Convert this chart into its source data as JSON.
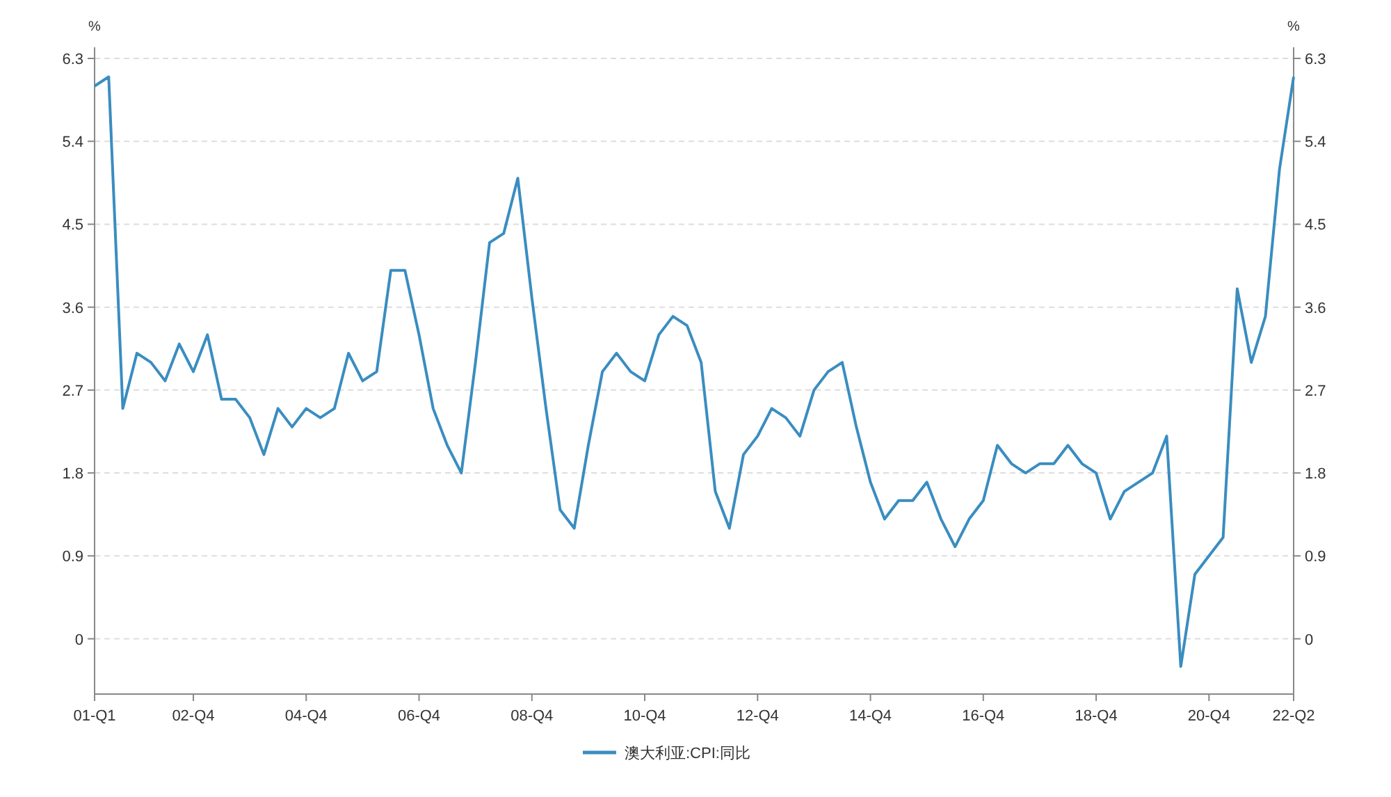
{
  "chart_data": {
    "type": "line",
    "ylabel": "%",
    "y2label": "%",
    "categories": [
      "01-Q1",
      null,
      null,
      null,
      null,
      null,
      null,
      "02-Q4",
      null,
      null,
      null,
      null,
      null,
      null,
      null,
      "04-Q4",
      null,
      null,
      null,
      null,
      null,
      null,
      null,
      "06-Q4",
      null,
      null,
      null,
      null,
      null,
      null,
      null,
      "08-Q4",
      null,
      null,
      null,
      null,
      null,
      null,
      null,
      "10-Q4",
      null,
      null,
      null,
      null,
      null,
      null,
      null,
      "12-Q4",
      null,
      null,
      null,
      null,
      null,
      null,
      null,
      "14-Q4",
      null,
      null,
      null,
      null,
      null,
      null,
      null,
      "16-Q4",
      null,
      null,
      null,
      null,
      null,
      null,
      null,
      "18-Q4",
      null,
      null,
      null,
      null,
      null,
      null,
      null,
      "20-Q4",
      null,
      null,
      null,
      null,
      null,
      "22-Q2"
    ],
    "series": [
      {
        "name": "澳大利亚:CPI:同比",
        "color": "#3a8dc0",
        "values": [
          6.0,
          6.1,
          2.5,
          3.1,
          3.0,
          2.8,
          3.2,
          2.9,
          3.3,
          2.6,
          2.6,
          2.4,
          2.0,
          2.5,
          2.3,
          2.5,
          2.4,
          2.5,
          3.1,
          2.8,
          2.9,
          4.0,
          4.0,
          3.3,
          2.5,
          2.1,
          1.8,
          3.0,
          4.3,
          4.4,
          5.0,
          3.7,
          2.5,
          1.4,
          1.2,
          2.1,
          2.9,
          3.1,
          2.9,
          2.8,
          3.3,
          3.5,
          3.4,
          3.0,
          1.6,
          1.2,
          2.0,
          2.2,
          2.5,
          2.4,
          2.2,
          2.7,
          2.9,
          3.0,
          2.3,
          1.7,
          1.3,
          1.5,
          1.5,
          1.7,
          1.3,
          1.0,
          1.3,
          1.5,
          2.1,
          1.9,
          1.8,
          1.9,
          1.9,
          2.1,
          1.9,
          1.8,
          1.3,
          1.6,
          1.7,
          1.8,
          2.2,
          -0.3,
          0.7,
          0.9,
          1.1,
          3.8,
          3.0,
          3.5,
          5.1,
          6.1
        ]
      }
    ],
    "ylim": [
      -0.6,
      6.3
    ],
    "yticks": [
      0,
      0.9,
      1.8,
      2.7,
      3.6,
      4.5,
      5.4,
      6.3
    ],
    "y2lim": [
      -0.6,
      6.3
    ],
    "y2ticks": [
      0,
      0.9,
      1.8,
      2.7,
      3.6,
      4.5,
      5.4,
      6.3
    ],
    "grid": "y",
    "legend": "bottom"
  }
}
